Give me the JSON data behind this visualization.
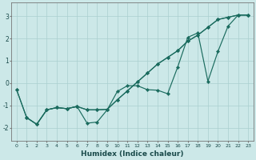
{
  "xlabel": "Humidex (Indice chaleur)",
  "bg_color": "#cce8e8",
  "grid_color": "#aacfcf",
  "line_color": "#1a6b5e",
  "xlim": [
    -0.5,
    23.5
  ],
  "ylim": [
    -2.6,
    3.6
  ],
  "yticks": [
    -2,
    -1,
    0,
    1,
    2,
    3
  ],
  "xticks": [
    0,
    1,
    2,
    3,
    4,
    5,
    6,
    7,
    8,
    9,
    10,
    11,
    12,
    13,
    14,
    15,
    16,
    17,
    18,
    19,
    20,
    21,
    22,
    23
  ],
  "line1_x": [
    0,
    1,
    2,
    3,
    4,
    5,
    6,
    7,
    8,
    9,
    10,
    11,
    12,
    13,
    14,
    15,
    16,
    17,
    18,
    19,
    20,
    21,
    22,
    23
  ],
  "line1_y": [
    -0.3,
    -1.55,
    -1.85,
    -1.2,
    -1.1,
    -1.15,
    -1.05,
    -1.2,
    -1.2,
    -1.18,
    -0.75,
    -0.35,
    0.05,
    0.45,
    0.85,
    1.15,
    1.45,
    1.88,
    2.15,
    2.5,
    2.85,
    2.95,
    3.05,
    3.05
  ],
  "line2_x": [
    0,
    1,
    2,
    3,
    4,
    5,
    6,
    7,
    8,
    9,
    10,
    11,
    12,
    13,
    14,
    15,
    16,
    17,
    18,
    19,
    20,
    21,
    22,
    23
  ],
  "line2_y": [
    -0.3,
    -1.55,
    -1.85,
    -1.2,
    -1.1,
    -1.15,
    -1.05,
    -1.8,
    -1.75,
    -1.2,
    -0.38,
    -0.12,
    -0.12,
    -0.3,
    -0.32,
    -0.48,
    0.72,
    2.05,
    2.25,
    0.08,
    1.42,
    2.55,
    3.05,
    3.05
  ],
  "line3_x": [
    1,
    2,
    3,
    4,
    5,
    6,
    7,
    8,
    9,
    10,
    11,
    12,
    13,
    14,
    15,
    16,
    17,
    18,
    19,
    20,
    21,
    22,
    23
  ],
  "line3_y": [
    -1.55,
    -1.85,
    -1.2,
    -1.1,
    -1.15,
    -1.05,
    -1.2,
    -1.2,
    -1.18,
    -0.75,
    -0.35,
    0.05,
    0.45,
    0.85,
    1.15,
    1.45,
    1.88,
    2.15,
    2.5,
    2.85,
    2.95,
    3.05,
    3.05
  ]
}
